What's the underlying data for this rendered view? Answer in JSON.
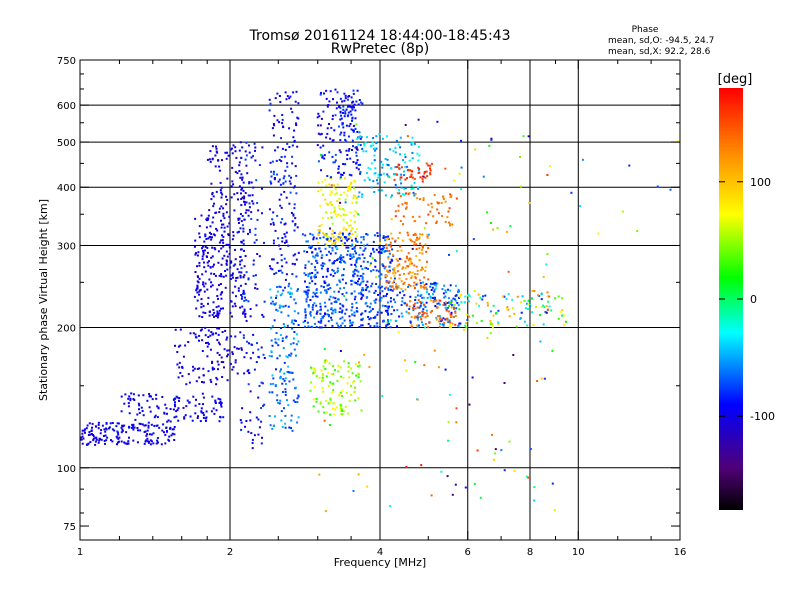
{
  "chart_data": {
    "type": "scatter",
    "title": "Tromsø 20161124 18:44:00-18:45:43",
    "subtitle": "RwPretec (8p)",
    "xlabel": "Frequency [MHz]",
    "ylabel": "Stationary phase Virtual Height [km]",
    "x_scale": "log",
    "y_scale": "log",
    "xlim": [
      1,
      16
    ],
    "ylim": [
      70,
      750
    ],
    "xticks": [
      {
        "value": 1,
        "label": "1"
      },
      {
        "value": 2,
        "label": "2"
      },
      {
        "value": 4,
        "label": "4"
      },
      {
        "value": 6,
        "label": "6"
      },
      {
        "value": 8,
        "label": "8"
      },
      {
        "value": 10,
        "label": "10"
      },
      {
        "value": 16,
        "label": "16"
      }
    ],
    "yticks": [
      {
        "value": 75,
        "label": "75"
      },
      {
        "value": 100,
        "label": "100"
      },
      {
        "value": 200,
        "label": "200"
      },
      {
        "value": 300,
        "label": "300"
      },
      {
        "value": 400,
        "label": "400"
      },
      {
        "value": 500,
        "label": "500"
      },
      {
        "value": 600,
        "label": "600"
      },
      {
        "value": 750,
        "label": "750"
      }
    ],
    "x_minor_ticks": [
      1.2,
      1.4,
      1.6,
      1.8,
      2.5,
      3,
      3.5,
      5,
      7,
      9,
      12,
      14
    ],
    "y_minor_ticks": [
      80,
      90,
      150,
      250,
      350,
      450,
      550,
      650,
      700
    ],
    "grid_x": [
      2,
      4,
      6,
      8,
      10
    ],
    "grid_y": [
      100,
      200,
      300,
      400,
      500,
      600
    ],
    "grid": true,
    "phase_stats": {
      "heading": "Phase",
      "line_o": "mean, sd,O: -94.5, 24.7",
      "line_x": "mean, sd,X:  92.2, 28.6"
    },
    "colorbar": {
      "label": "[deg]",
      "range": [
        -180,
        180
      ],
      "ticks": [
        {
          "value": 100,
          "label": "100"
        },
        {
          "value": 0,
          "label": "0"
        },
        {
          "value": -100,
          "label": "-100"
        }
      ],
      "colors": [
        "#000000",
        "#500078",
        "#0000ff",
        "#00ffff",
        "#00ff00",
        "#ffff00",
        "#ff8800",
        "#ff0000"
      ]
    },
    "clusters": [
      {
        "x": [
          1.0,
          1.55
        ],
        "y": [
          112,
          125
        ],
        "phase": [
          -110,
          -85
        ],
        "n": 170
      },
      {
        "x": [
          1.2,
          1.95
        ],
        "y": [
          125,
          145
        ],
        "phase": [
          -110,
          -85
        ],
        "n": 120
      },
      {
        "x": [
          1.55,
          2.1
        ],
        "y": [
          150,
          200
        ],
        "phase": [
          -115,
          -85
        ],
        "n": 110
      },
      {
        "x": [
          1.7,
          2.15
        ],
        "y": [
          210,
          350
        ],
        "phase": [
          -115,
          -85
        ],
        "n": 260
      },
      {
        "x": [
          1.8,
          2.25
        ],
        "y": [
          350,
          500
        ],
        "phase": [
          -115,
          -85
        ],
        "n": 110
      },
      {
        "x": [
          2.1,
          2.35
        ],
        "y": [
          110,
          500
        ],
        "phase": [
          -110,
          -70
        ],
        "n": 130
      },
      {
        "x": [
          2.4,
          2.75
        ],
        "y": [
          120,
          250
        ],
        "phase": [
          -85,
          -40
        ],
        "n": 160
      },
      {
        "x": [
          2.4,
          2.75
        ],
        "y": [
          250,
          650
        ],
        "phase": [
          -110,
          -70
        ],
        "n": 160
      },
      {
        "x": [
          2.8,
          4.3
        ],
        "y": [
          200,
          320
        ],
        "phase": [
          -95,
          -55
        ],
        "n": 560
      },
      {
        "x": [
          2.9,
          3.7
        ],
        "y": [
          130,
          170
        ],
        "phase": [
          20,
          80
        ],
        "n": 110
      },
      {
        "x": [
          3.0,
          3.6
        ],
        "y": [
          300,
          420
        ],
        "phase": [
          50,
          100
        ],
        "n": 130
      },
      {
        "x": [
          3.0,
          3.7
        ],
        "y": [
          420,
          650
        ],
        "phase": [
          -110,
          -70
        ],
        "n": 130
      },
      {
        "x": [
          3.3,
          3.6
        ],
        "y": [
          540,
          640
        ],
        "phase": [
          -100,
          -80
        ],
        "n": 40
      },
      {
        "x": [
          3.6,
          4.8
        ],
        "y": [
          380,
          520
        ],
        "phase": [
          -70,
          -20
        ],
        "n": 130
      },
      {
        "x": [
          4.1,
          5.0
        ],
        "y": [
          240,
          320
        ],
        "phase": [
          100,
          150
        ],
        "n": 150
      },
      {
        "x": [
          4.3,
          5.1
        ],
        "y": [
          410,
          450
        ],
        "phase": [
          150,
          170
        ],
        "n": 40
      },
      {
        "x": [
          4.3,
          5.8
        ],
        "y": [
          200,
          250
        ],
        "phase": [
          -95,
          -40
        ],
        "n": 150
      },
      {
        "x": [
          4.5,
          5.7
        ],
        "y": [
          200,
          230
        ],
        "phase": [
          115,
          160
        ],
        "n": 70
      },
      {
        "x": [
          4.3,
          5.6
        ],
        "y": [
          330,
          390
        ],
        "phase": [
          120,
          160
        ],
        "n": 60
      },
      {
        "x": [
          5.5,
          9.5
        ],
        "y": [
          200,
          240
        ],
        "phase": [
          -95,
          140
        ],
        "n": 120
      },
      {
        "x": [
          3.0,
          9.0
        ],
        "y": [
          80,
          560
        ],
        "phase": [
          -150,
          170
        ],
        "n": 150
      },
      {
        "x": [
          9.5,
          16.0
        ],
        "y": [
          250,
          550
        ],
        "phase": [
          -90,
          130
        ],
        "n": 10
      }
    ]
  }
}
